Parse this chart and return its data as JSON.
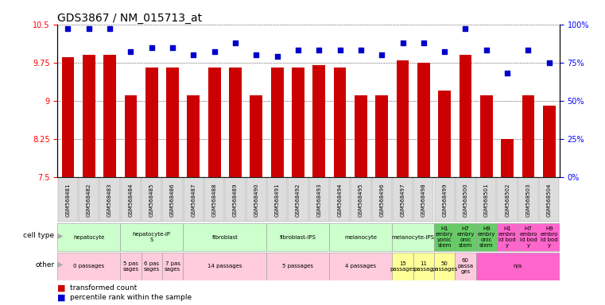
{
  "title": "GDS3867 / NM_015713_at",
  "samples": [
    "GSM568481",
    "GSM568482",
    "GSM568483",
    "GSM568484",
    "GSM568485",
    "GSM568486",
    "GSM568487",
    "GSM568488",
    "GSM568489",
    "GSM568490",
    "GSM568491",
    "GSM568492",
    "GSM568493",
    "GSM568494",
    "GSM568495",
    "GSM568496",
    "GSM568497",
    "GSM568498",
    "GSM568499",
    "GSM568500",
    "GSM568501",
    "GSM568502",
    "GSM568503",
    "GSM568504"
  ],
  "bar_values": [
    9.85,
    9.9,
    9.9,
    9.1,
    9.65,
    9.65,
    9.1,
    9.65,
    9.65,
    9.1,
    9.65,
    9.65,
    9.7,
    9.65,
    9.1,
    9.1,
    9.8,
    9.75,
    9.2,
    9.9,
    9.1,
    8.25,
    9.1,
    8.9
  ],
  "dot_values": [
    97,
    97,
    97,
    82,
    85,
    85,
    80,
    82,
    88,
    80,
    79,
    83,
    83,
    83,
    83,
    80,
    88,
    88,
    82,
    97,
    83,
    68,
    83,
    75
  ],
  "ylim_left": [
    7.5,
    10.5
  ],
  "ylim_right": [
    0,
    100
  ],
  "yticks_left": [
    7.5,
    8.25,
    9.0,
    9.75,
    10.5
  ],
  "ytick_labels_left": [
    "7.5",
    "8.25",
    "9",
    "9.75",
    "10.5"
  ],
  "yticks_right": [
    0,
    25,
    50,
    75,
    100
  ],
  "ytick_labels_right": [
    "0%",
    "25%",
    "50%",
    "75%",
    "100%"
  ],
  "cell_type_groups": [
    {
      "label": "hepatocyte",
      "start": 0,
      "end": 2,
      "color": "#ccffcc"
    },
    {
      "label": "hepatocyte-iP\nS",
      "start": 3,
      "end": 5,
      "color": "#ccffcc"
    },
    {
      "label": "fibroblast",
      "start": 6,
      "end": 9,
      "color": "#ccffcc"
    },
    {
      "label": "fibroblast-IPS",
      "start": 10,
      "end": 12,
      "color": "#ccffcc"
    },
    {
      "label": "melanocyte",
      "start": 13,
      "end": 15,
      "color": "#ccffcc"
    },
    {
      "label": "melanocyte-IPS",
      "start": 16,
      "end": 17,
      "color": "#ccffcc"
    },
    {
      "label": "H1\nembry\nyonic\nstem",
      "start": 18,
      "end": 18,
      "color": "#66cc66"
    },
    {
      "label": "H7\nembry\nonic\nstem",
      "start": 19,
      "end": 19,
      "color": "#66cc66"
    },
    {
      "label": "H9\nembry\nonic\nstem",
      "start": 20,
      "end": 20,
      "color": "#66cc66"
    },
    {
      "label": "H1\nembro\nid bod\ny",
      "start": 21,
      "end": 21,
      "color": "#ff66cc"
    },
    {
      "label": "H7\nembro\nid bod\ny",
      "start": 22,
      "end": 22,
      "color": "#ff66cc"
    },
    {
      "label": "H9\nembro\nid bod\ny",
      "start": 23,
      "end": 23,
      "color": "#ff66cc"
    }
  ],
  "other_groups": [
    {
      "label": "0 passages",
      "start": 0,
      "end": 2,
      "color": "#ffccdd"
    },
    {
      "label": "5 pas\nsages",
      "start": 3,
      "end": 3,
      "color": "#ffccdd"
    },
    {
      "label": "6 pas\nsages",
      "start": 4,
      "end": 4,
      "color": "#ffccdd"
    },
    {
      "label": "7 pas\nsages",
      "start": 5,
      "end": 5,
      "color": "#ffccdd"
    },
    {
      "label": "14 passages",
      "start": 6,
      "end": 9,
      "color": "#ffccdd"
    },
    {
      "label": "5 passages",
      "start": 10,
      "end": 12,
      "color": "#ffccdd"
    },
    {
      "label": "4 passages",
      "start": 13,
      "end": 15,
      "color": "#ffccdd"
    },
    {
      "label": "15\npassages",
      "start": 16,
      "end": 16,
      "color": "#ffff99"
    },
    {
      "label": "11\npassag",
      "start": 17,
      "end": 17,
      "color": "#ffff99"
    },
    {
      "label": "50\npassages",
      "start": 18,
      "end": 18,
      "color": "#ffff99"
    },
    {
      "label": "60\npassa\nges",
      "start": 19,
      "end": 19,
      "color": "#ffccdd"
    },
    {
      "label": "n/a",
      "start": 20,
      "end": 23,
      "color": "#ff66cc"
    }
  ],
  "bar_color": "#cc0000",
  "dot_color": "#0000cc",
  "grid_color": "#888888",
  "bg_color": "#ffffff",
  "title_fontsize": 10,
  "tick_fontsize": 7,
  "label_fontsize": 7,
  "sample_label_color": "#aaaaaa",
  "sample_bg_color": "#dddddd"
}
